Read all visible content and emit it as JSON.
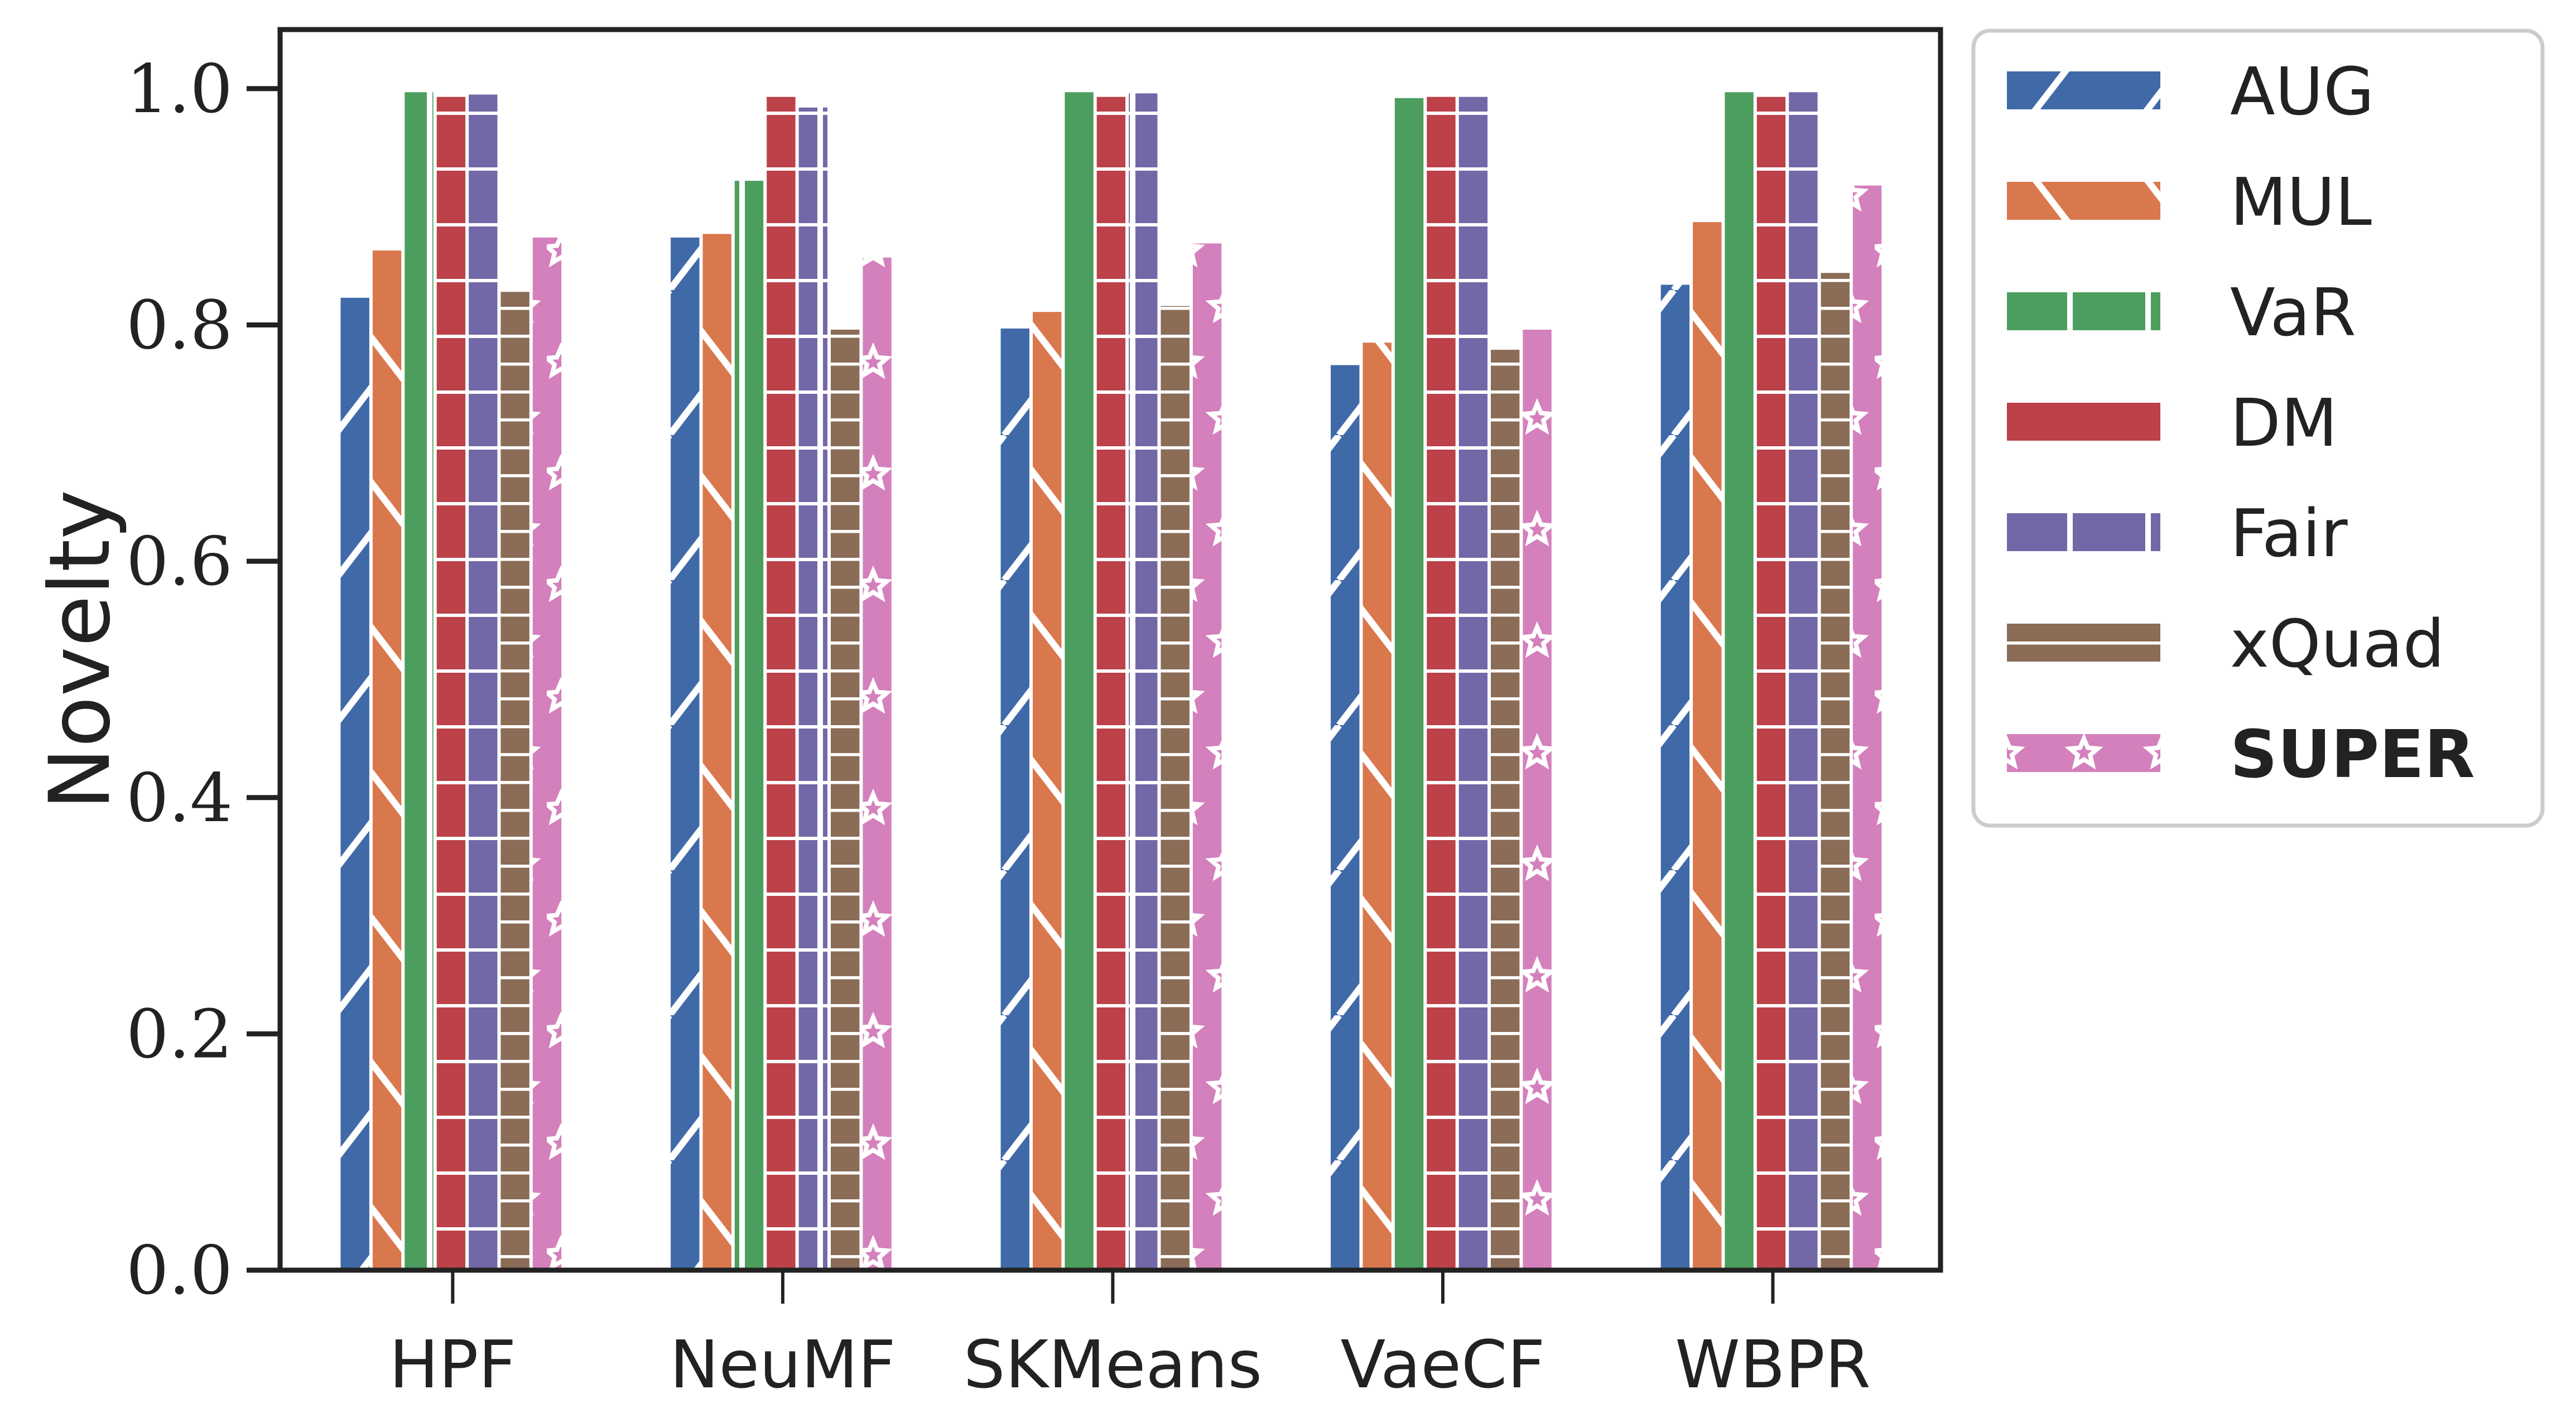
{
  "chart_data": {
    "type": "bar",
    "title": "",
    "xlabel": "",
    "ylabel": "Novelty",
    "ylim": [
      0,
      1.05
    ],
    "yticks": [
      0.0,
      0.2,
      0.4,
      0.6,
      0.8,
      1.0
    ],
    "ytick_labels": [
      "0.0",
      "0.2",
      "0.4",
      "0.6",
      "0.8",
      "1.0"
    ],
    "grid": false,
    "legend_position": "outside-top-right",
    "categories": [
      "HPF",
      "NeuMF",
      "SKMeans",
      "VaeCF",
      "WBPR"
    ],
    "series": [
      {
        "name": "AUG",
        "color": "#4069a8",
        "hatch": "forward-diagonal",
        "bold": false,
        "values": [
          0.823,
          0.874,
          0.797,
          0.766,
          0.834
        ]
      },
      {
        "name": "MUL",
        "color": "#d9784d",
        "hatch": "back-diagonal",
        "bold": false,
        "values": [
          0.863,
          0.877,
          0.811,
          0.785,
          0.887
        ]
      },
      {
        "name": "VaR",
        "color": "#4c9e5f",
        "hatch": "vertical",
        "bold": false,
        "values": [
          0.997,
          0.922,
          0.997,
          0.992,
          0.997
        ]
      },
      {
        "name": "DM",
        "color": "#bc4149",
        "hatch": "horizontal",
        "bold": false,
        "values": [
          0.993,
          0.993,
          0.993,
          0.993,
          0.993
        ]
      },
      {
        "name": "Fair",
        "color": "#7268a8",
        "hatch": "grid",
        "bold": false,
        "values": [
          0.995,
          0.984,
          0.996,
          0.993,
          0.997
        ]
      },
      {
        "name": "xQuad",
        "color": "#8a6c57",
        "hatch": "dense-horizontal",
        "bold": false,
        "values": [
          0.828,
          0.796,
          0.816,
          0.779,
          0.844
        ]
      },
      {
        "name": "SUPER",
        "color": "#d480bc",
        "hatch": "stars",
        "bold": true,
        "values": [
          0.874,
          0.857,
          0.869,
          0.796,
          0.918
        ]
      }
    ]
  }
}
